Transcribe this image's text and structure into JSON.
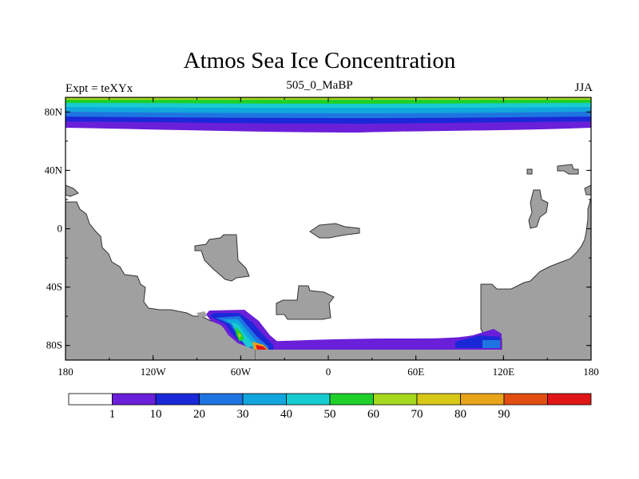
{
  "title": "Atmos Sea Ice Concentration",
  "subtitle_left": "Expt = teXYx",
  "subtitle_center": "505_0_MaBP",
  "subtitle_right": "JJA",
  "map": {
    "projection": "cylindrical-equidistant",
    "lon_range": [
      -180,
      180
    ],
    "lat_range": [
      -90,
      90
    ],
    "lon_ticks": [
      {
        "value": -180,
        "label": "180"
      },
      {
        "value": -120,
        "label": "120W"
      },
      {
        "value": -60,
        "label": "60W"
      },
      {
        "value": 0,
        "label": "0"
      },
      {
        "value": 60,
        "label": "60E"
      },
      {
        "value": 120,
        "label": "120E"
      },
      {
        "value": 180,
        "label": "180"
      }
    ],
    "lat_ticks": [
      {
        "value": 80,
        "label": "80N"
      },
      {
        "value": 40,
        "label": "40N"
      },
      {
        "value": 0,
        "label": "0"
      },
      {
        "value": -40,
        "label": "40S"
      },
      {
        "value": -80,
        "label": "80S"
      }
    ],
    "land_color": "#a0a0a0",
    "ocean_color": "#ffffff"
  },
  "colorbar": {
    "colors": [
      "#ffffff",
      "#6a1fd8",
      "#1a28d8",
      "#1e74e0",
      "#11a6de",
      "#16ccd0",
      "#1fd02a",
      "#a6d81e",
      "#d8c818",
      "#e8a41a",
      "#e24d12",
      "#e01616"
    ],
    "labels": [
      "1",
      "10",
      "20",
      "30",
      "40",
      "50",
      "60",
      "70",
      "80",
      "90"
    ]
  }
}
